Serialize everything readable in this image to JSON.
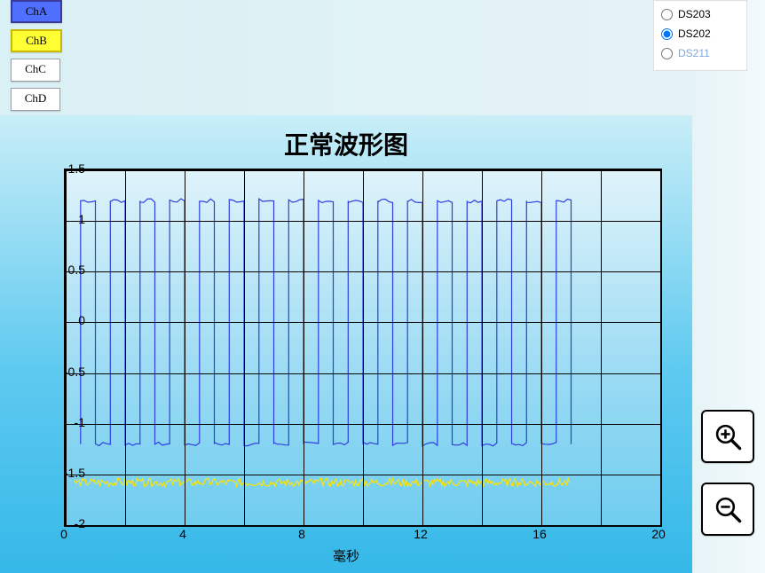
{
  "channels": [
    {
      "id": "ChA",
      "label": "ChA",
      "bg": "#4f6fff",
      "border": "#3a3a9c",
      "active": true
    },
    {
      "id": "ChB",
      "label": "ChB",
      "bg": "#ffff33",
      "border": "#c9b800",
      "active": true
    },
    {
      "id": "ChC",
      "label": "ChC",
      "bg": "#ffffff",
      "border": "#9aa0a8",
      "active": false
    },
    {
      "id": "ChD",
      "label": "ChD",
      "bg": "#ffffff",
      "border": "#9aa0a8",
      "active": false
    }
  ],
  "devices": {
    "options": [
      "DS203",
      "DS202",
      "DS211"
    ],
    "selected": "DS202",
    "disabled": [
      "DS211"
    ]
  },
  "chart": {
    "title": "正常波形图",
    "xlabel": "毫秒",
    "xlim": [
      0,
      20
    ],
    "ylim": [
      -2,
      1.5
    ],
    "xtick_step": 2,
    "ytick_step": 0.5,
    "xtick_labels_every": 2,
    "plot_bg_top": "#dff3fa",
    "plot_bg_bottom": "#6fcdef",
    "grid_color": "#000000",
    "frame_color": "#000000",
    "tick_fontsize": 14,
    "title_fontsize": 28,
    "series": [
      {
        "name": "ChA",
        "color": "#2e3fe0",
        "line_width": 1.2,
        "type": "square",
        "period_ms": 0.5,
        "high": 1.2,
        "low": -1.2,
        "x_start": 0.5,
        "x_end": 17.0,
        "noise": 0.04
      },
      {
        "name": "ChB",
        "color": "#ffe400",
        "line_width": 1.2,
        "type": "noisy-flat",
        "level": -1.58,
        "x_start": 0.3,
        "x_end": 17.0,
        "noise": 0.08
      }
    ]
  },
  "zoom": {
    "in_label": "zoom-in",
    "out_label": "zoom-out"
  }
}
